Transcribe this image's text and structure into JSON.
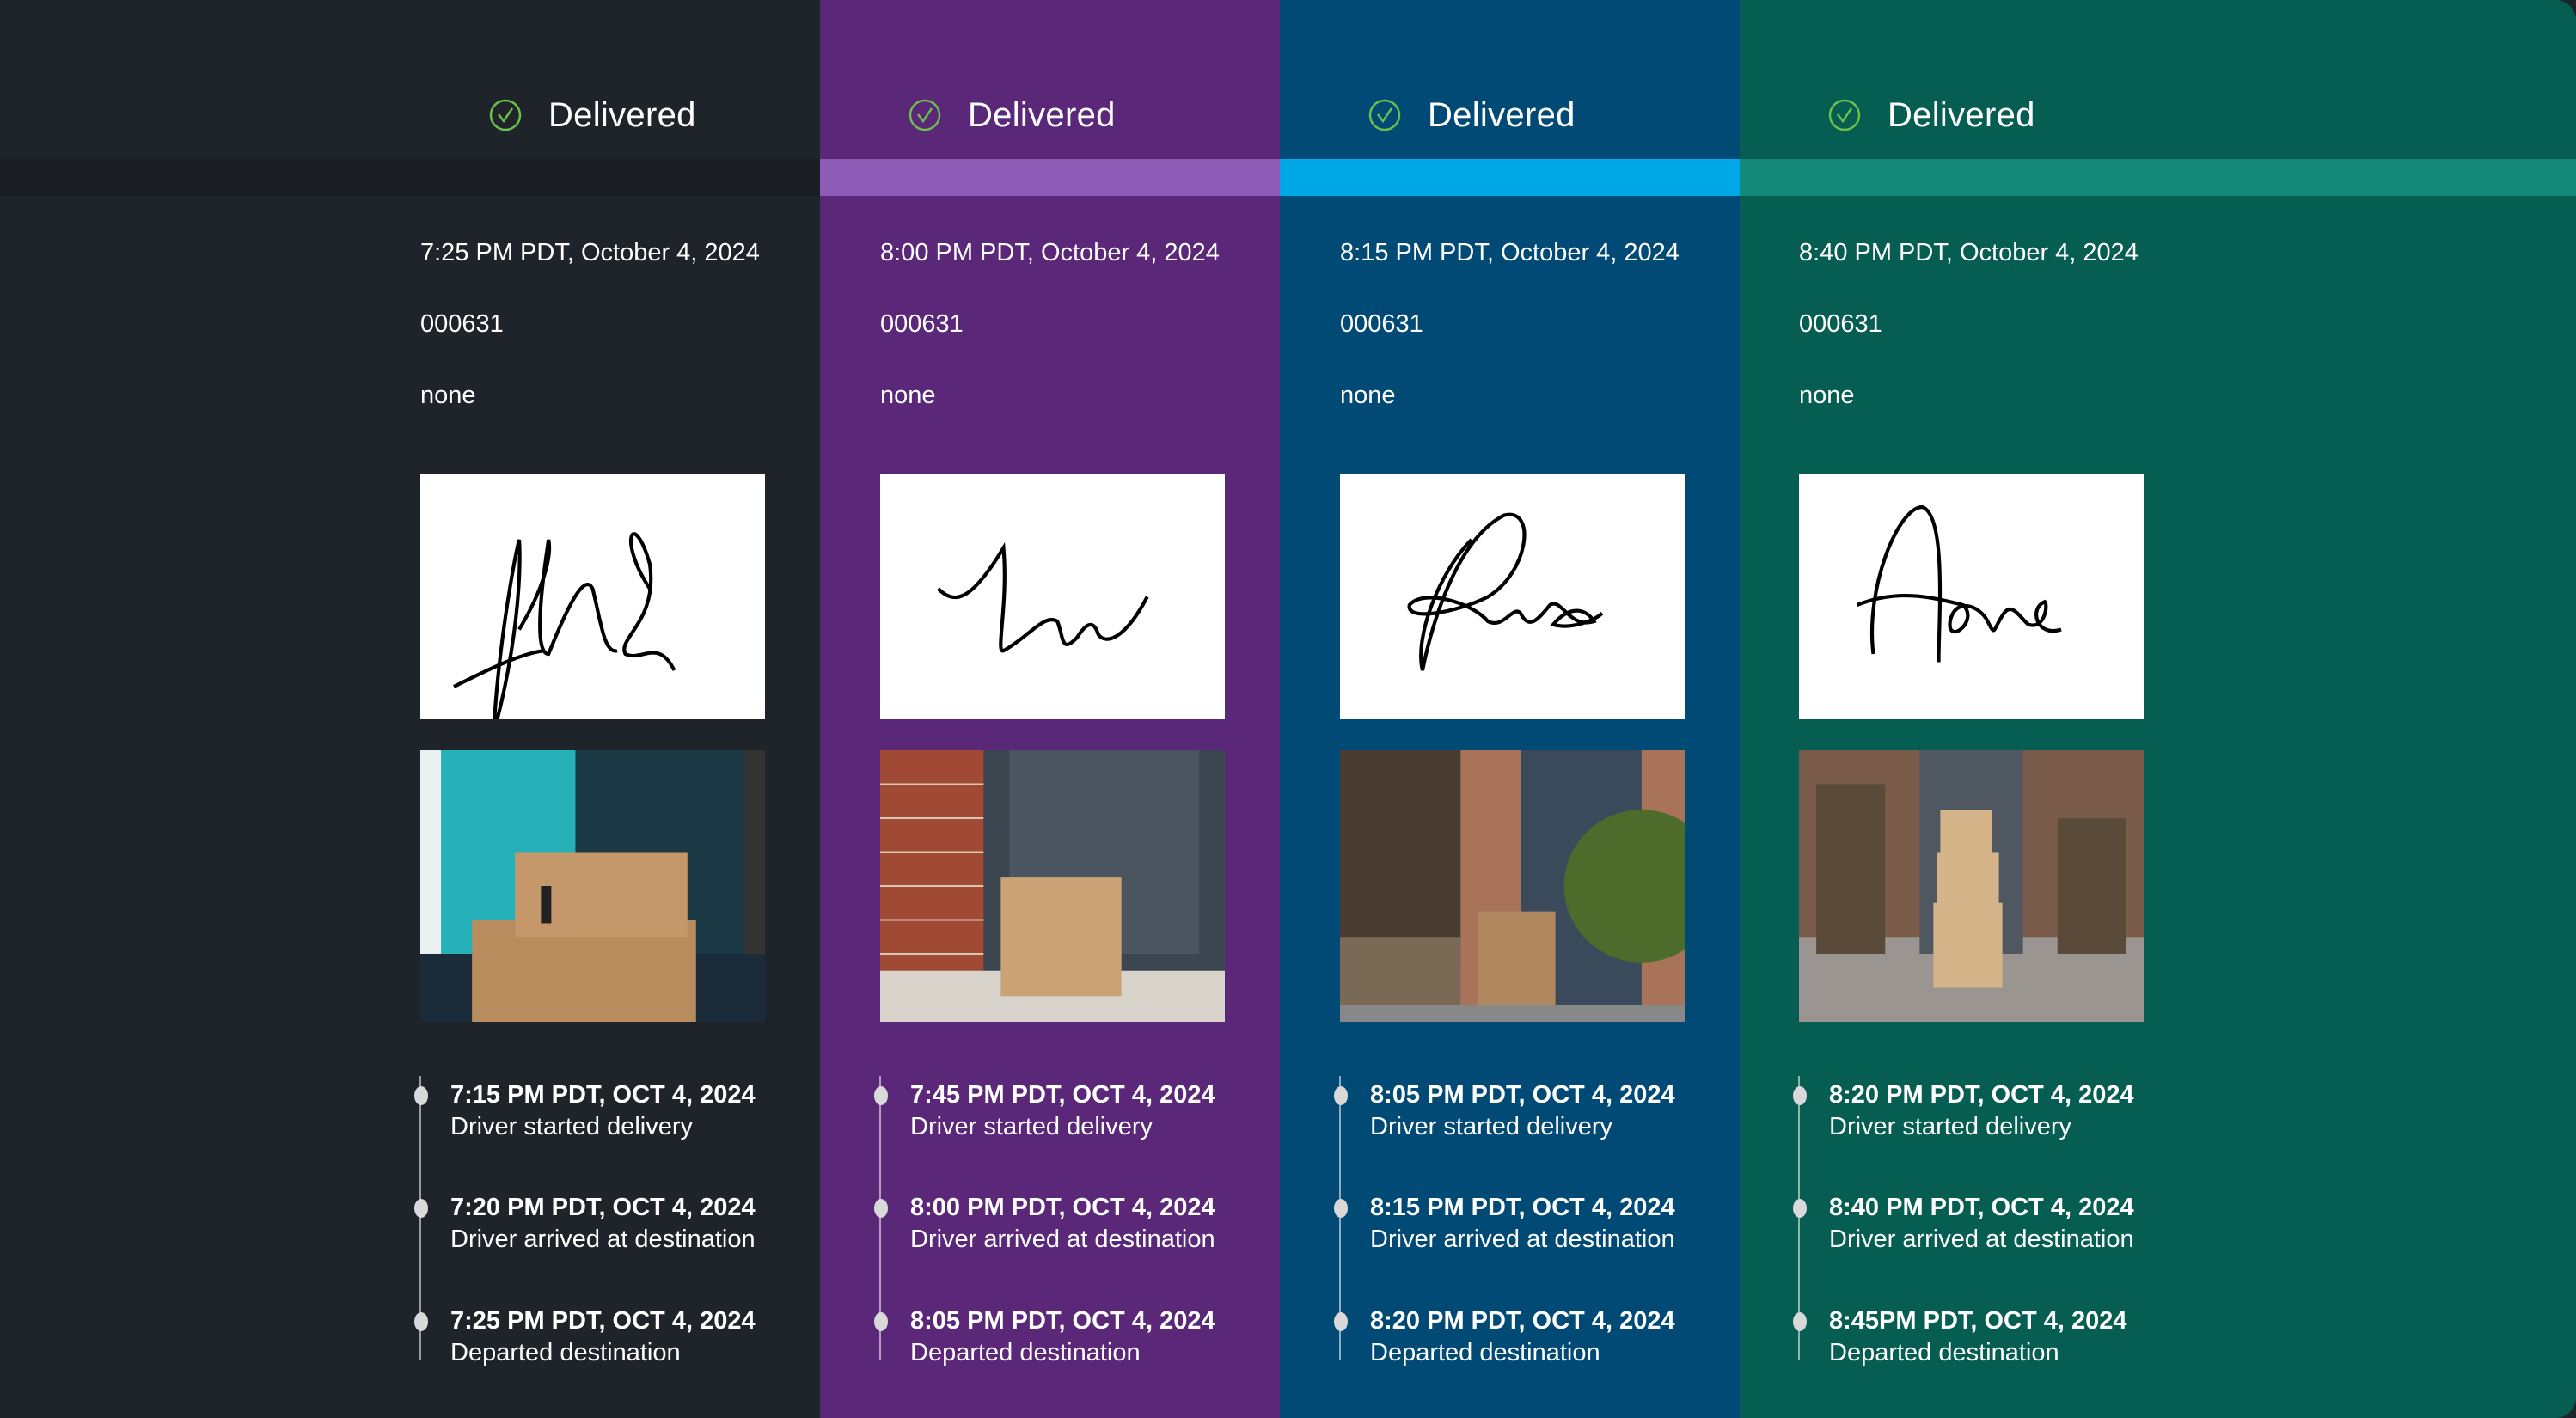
{
  "columns": [
    {
      "colors": {
        "background": "#1f232a",
        "stripe": "#1a1d21"
      },
      "status": "Delivered",
      "status_icon": "check-circle-icon",
      "delivered_at": "7:25 PM PDT, October 4, 2024",
      "order_id": "000631",
      "note": "none",
      "events": [
        {
          "time": "7:15 PM PDT, OCT 4, 2024",
          "label": "Driver started delivery"
        },
        {
          "time": "7:20 PM PDT, OCT 4, 2024",
          "label": "Driver arrived at destination"
        },
        {
          "time": "7:25 PM PDT, OCT 4, 2024",
          "label": "Departed destination"
        }
      ]
    },
    {
      "colors": {
        "background": "#5a2779",
        "stripe": "#8b5bb5"
      },
      "status": "Delivered",
      "status_icon": "check-circle-icon",
      "delivered_at": "8:00 PM PDT, October 4, 2024",
      "order_id": "000631",
      "note": "none",
      "events": [
        {
          "time": "7:45 PM PDT, OCT 4, 2024",
          "label": "Driver started delivery"
        },
        {
          "time": "8:00 PM PDT, OCT 4, 2024",
          "label": "Driver arrived at destination"
        },
        {
          "time": "8:05 PM PDT, OCT 4, 2024",
          "label": "Departed destination"
        }
      ]
    },
    {
      "colors": {
        "background": "#004a75",
        "stripe": "#00a8e8"
      },
      "status": "Delivered",
      "status_icon": "check-circle-icon",
      "delivered_at": "8:15 PM PDT, October 4, 2024",
      "order_id": "000631",
      "note": "none",
      "events": [
        {
          "time": "8:05 PM PDT, OCT 4, 2024",
          "label": "Driver started delivery"
        },
        {
          "time": "8:15 PM PDT, OCT 4, 2024",
          "label": "Driver arrived at destination"
        },
        {
          "time": "8:20 PM PDT, OCT 4, 2024",
          "label": "Departed destination"
        }
      ]
    },
    {
      "colors": {
        "background": "#065e52",
        "stripe": "#14897a"
      },
      "status": "Delivered",
      "status_icon": "check-circle-icon",
      "delivered_at": "8:40 PM PDT, October 4, 2024",
      "order_id": "000631",
      "note": "none",
      "events": [
        {
          "time": "8:20 PM PDT, OCT 4, 2024",
          "label": "Driver started delivery"
        },
        {
          "time": "8:40 PM PDT, OCT 4, 2024",
          "label": "Driver arrived at destination"
        },
        {
          "time": "8:45PM PDT, OCT 4, 2024",
          "label": "Departed destination"
        }
      ]
    }
  ],
  "status_color": "#6cc04a"
}
